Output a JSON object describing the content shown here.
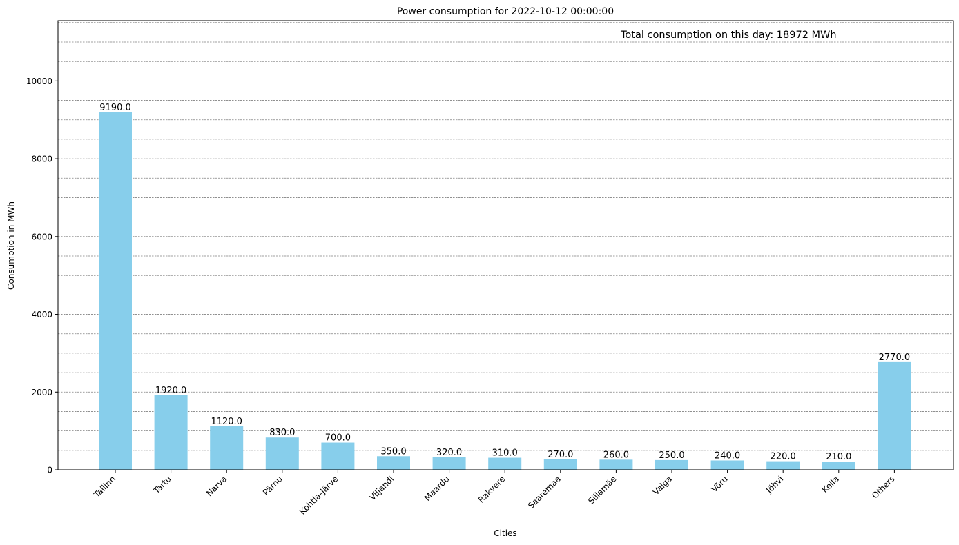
{
  "chart_data": {
    "type": "bar",
    "title": "Power consumption for 2022-10-12 00:00:00",
    "annotation": "Total consumption on this day: 18972 MWh",
    "xlabel": "Cities",
    "ylabel": "Consumption in MWh",
    "categories": [
      "Tallinn",
      "Tartu",
      "Narva",
      "Pärnu",
      "Kohtla-Järve",
      "Viljandi",
      "Maardu",
      "Rakvere",
      "Saaremaa",
      "Sillamäe",
      "Valga",
      "Võru",
      "Jõhvi",
      "Keila",
      "Others"
    ],
    "values": [
      9190.0,
      1920.0,
      1120.0,
      830.0,
      700.0,
      350.0,
      320.0,
      310.0,
      270.0,
      260.0,
      250.0,
      240.0,
      220.0,
      210.0,
      2770.0
    ],
    "value_labels": [
      "9190.0",
      "1920.0",
      "1120.0",
      "830.0",
      "700.0",
      "350.0",
      "320.0",
      "310.0",
      "270.0",
      "260.0",
      "250.0",
      "240.0",
      "220.0",
      "210.0",
      "2770.0"
    ],
    "ylim": [
      0,
      11550
    ],
    "yticks": [
      0,
      2000,
      4000,
      6000,
      8000,
      10000
    ],
    "grid_step": 500,
    "grid": true,
    "bar_color": "#87CEEB",
    "grid_color": "#808080"
  }
}
